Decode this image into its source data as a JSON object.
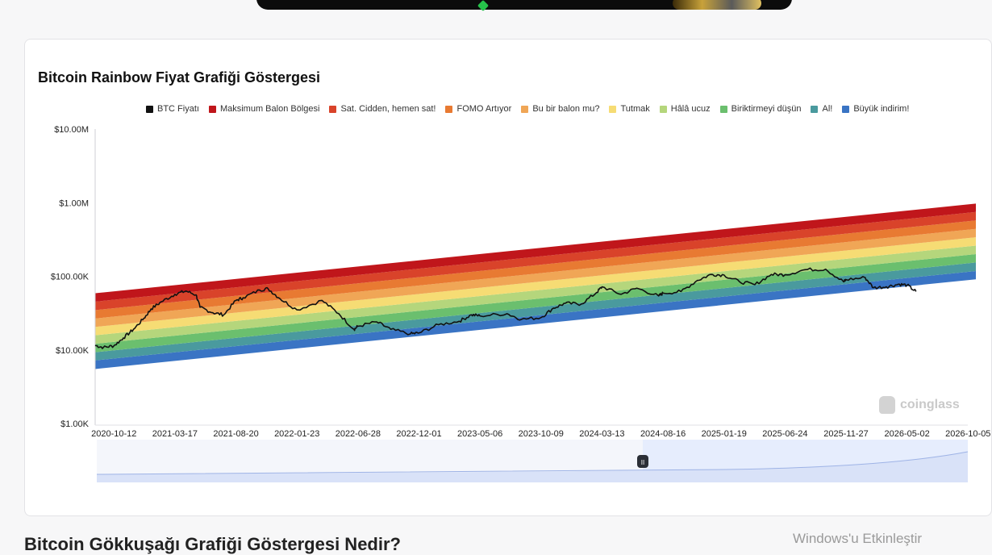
{
  "banner": {
    "art_icon": "promo-art"
  },
  "card": {
    "title": "Bitcoin Rainbow Fiyat Grafiği Göstergesi",
    "watermark": "coinglass"
  },
  "legend": [
    {
      "label": "BTC Fiyatı",
      "color": "#111111"
    },
    {
      "label": "Maksimum Balon Bölgesi",
      "color": "#c0161b"
    },
    {
      "label": "Sat. Cidden, hemen sat!",
      "color": "#d9432a"
    },
    {
      "label": "FOMO Artıyor",
      "color": "#e87a32"
    },
    {
      "label": "Bu bir balon mu?",
      "color": "#f0a656"
    },
    {
      "label": "Tutmak",
      "color": "#f6dc74"
    },
    {
      "label": "Hâlâ ucuz",
      "color": "#b5d67c"
    },
    {
      "label": "Biriktirmeyi düşün",
      "color": "#6bbf6e"
    },
    {
      "label": "Al!",
      "color": "#4a9a9e"
    },
    {
      "label": "Büyük indirim!",
      "color": "#3a74c4"
    }
  ],
  "chart_data": {
    "type": "line",
    "title": "Bitcoin Rainbow Fiyat Grafiği Göstergesi",
    "y_scale": "log",
    "ylim": [
      1000,
      10000000
    ],
    "y_ticks": [
      "$1.00K",
      "$10.00K",
      "$100.00K",
      "$1.00M",
      "$10.00M"
    ],
    "y_tick_values": [
      1000,
      10000,
      100000,
      1000000,
      10000000
    ],
    "x_ticks": [
      "2020-10-12",
      "2021-03-17",
      "2021-08-20",
      "2022-01-23",
      "2022-06-28",
      "2022-12-01",
      "2023-05-06",
      "2023-10-09",
      "2024-03-13",
      "2024-08-16",
      "2025-01-19",
      "2025-06-24",
      "2025-11-27",
      "2026-05-02",
      "2026-10-05"
    ],
    "x_range": [
      "2020-08-25",
      "2026-10-25"
    ],
    "rainbow_bands": {
      "names": [
        "Büyük indirim!",
        "Al!",
        "Biriktirmeyi düşün",
        "Hâlâ ucuz",
        "Tutmak",
        "Bu bir balon mu?",
        "FOMO Artıyor",
        "Sat. Cidden, hemen sat!",
        "Maksimum Balon Bölgesi"
      ],
      "colors": [
        "#3a74c4",
        "#4a9a9e",
        "#6bbf6e",
        "#b5d67c",
        "#f6dc74",
        "#f0a656",
        "#e87a32",
        "#d9432a",
        "#c0161b"
      ],
      "boundaries_start": [
        5500,
        7200,
        9300,
        12100,
        15800,
        20500,
        26700,
        34700,
        45200,
        58800
      ],
      "boundaries_end": [
        91000,
        118000,
        154000,
        200000,
        261000,
        339000,
        441000,
        574000,
        747000,
        972000
      ]
    },
    "series": [
      {
        "name": "BTC Fiyatı",
        "color": "#111111",
        "points": [
          [
            "2020-08-25",
            11500
          ],
          [
            "2020-09-15",
            10800
          ],
          [
            "2020-10-12",
            11400
          ],
          [
            "2020-11-05",
            14500
          ],
          [
            "2020-12-01",
            19000
          ],
          [
            "2020-12-28",
            27000
          ],
          [
            "2021-01-15",
            36000
          ],
          [
            "2021-02-10",
            45000
          ],
          [
            "2021-03-17",
            57000
          ],
          [
            "2021-04-14",
            63000
          ],
          [
            "2021-05-10",
            56000
          ],
          [
            "2021-05-20",
            38000
          ],
          [
            "2021-06-22",
            32000
          ],
          [
            "2021-07-20",
            30000
          ],
          [
            "2021-08-20",
            47000
          ],
          [
            "2021-09-07",
            51000
          ],
          [
            "2021-10-20",
            65000
          ],
          [
            "2021-11-10",
            68000
          ],
          [
            "2021-12-10",
            50000
          ],
          [
            "2022-01-23",
            35000
          ],
          [
            "2022-03-28",
            47000
          ],
          [
            "2022-05-10",
            31000
          ],
          [
            "2022-06-18",
            19000
          ],
          [
            "2022-06-28",
            21000
          ],
          [
            "2022-08-15",
            24000
          ],
          [
            "2022-09-20",
            19000
          ],
          [
            "2022-11-09",
            16500
          ],
          [
            "2022-12-01",
            17000
          ],
          [
            "2023-01-20",
            22000
          ],
          [
            "2023-03-14",
            24500
          ],
          [
            "2023-04-14",
            30000
          ],
          [
            "2023-05-06",
            29000
          ],
          [
            "2023-07-14",
            31000
          ],
          [
            "2023-08-20",
            26000
          ],
          [
            "2023-10-09",
            27500
          ],
          [
            "2023-11-10",
            37000
          ],
          [
            "2023-12-10",
            43000
          ],
          [
            "2024-01-20",
            42000
          ],
          [
            "2024-02-28",
            60000
          ],
          [
            "2024-03-13",
            72000
          ],
          [
            "2024-05-01",
            57000
          ],
          [
            "2024-06-10",
            69000
          ],
          [
            "2024-08-05",
            54000
          ],
          [
            "2024-08-16",
            59000
          ],
          [
            "2024-10-01",
            62000
          ],
          [
            "2024-11-12",
            88000
          ],
          [
            "2024-12-17",
            106000
          ],
          [
            "2025-01-19",
            104000
          ],
          [
            "2025-02-28",
            84000
          ],
          [
            "2025-04-08",
            77000
          ],
          [
            "2025-05-20",
            106000
          ],
          [
            "2025-06-24",
            105000
          ],
          [
            "2025-08-14",
            123000
          ],
          [
            "2025-10-06",
            125000
          ],
          [
            "2025-11-21",
            84000
          ],
          [
            "2025-11-27",
            90000
          ],
          [
            "2026-01-15",
            96000
          ],
          [
            "2026-02-05",
            70000
          ],
          [
            "2026-03-10",
            72000
          ],
          [
            "2026-04-10",
            78000
          ],
          [
            "2026-05-02",
            76000
          ],
          [
            "2026-05-25",
            62000
          ]
        ]
      }
    ],
    "navigator": {
      "handle_label": "II"
    }
  },
  "section_heading": "Bitcoin Gökkuşağı Grafiği Göstergesi Nedir?",
  "os_watermark": "Windows'u Etkinleştir"
}
